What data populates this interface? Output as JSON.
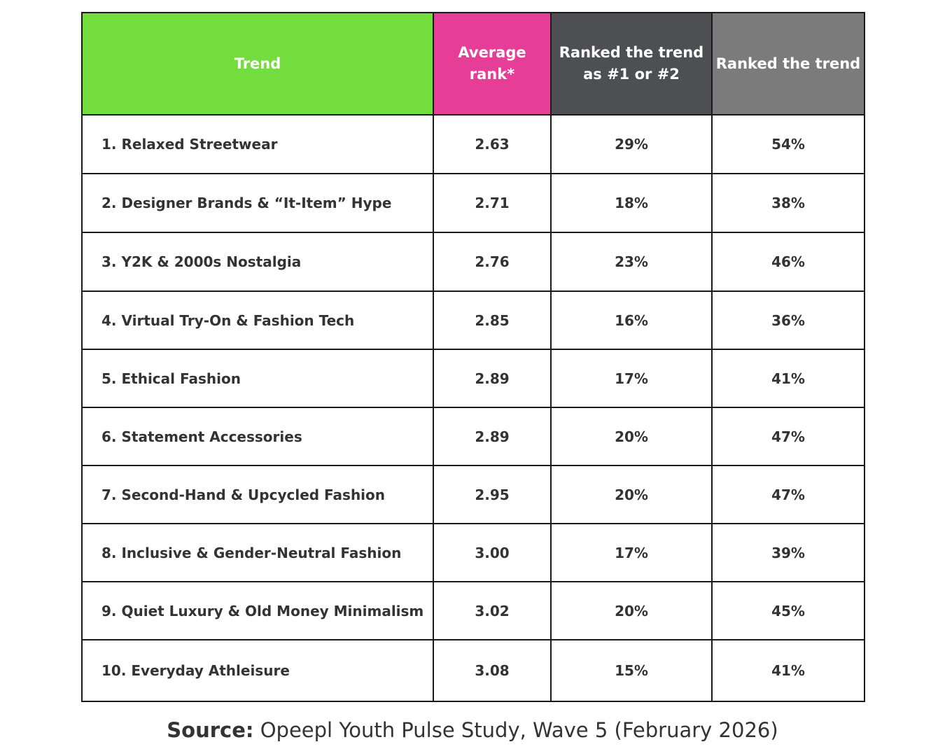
{
  "chart_data": {
    "type": "table",
    "columns": [
      {
        "label": "Trend",
        "color": "#73dd3d"
      },
      {
        "label": "Average rank*",
        "color": "#e63d96"
      },
      {
        "label": "Ranked the trend as #1 or #2",
        "color": "#4e4f52"
      },
      {
        "label": "Ranked the trend",
        "color": "#7b7b7b"
      }
    ],
    "rows": [
      {
        "trend": "1. Relaxed Streetwear",
        "avg_rank": "2.63",
        "top2": "29%",
        "ranked": "54%"
      },
      {
        "trend": "2. Designer Brands & “It-Item” Hype",
        "avg_rank": "2.71",
        "top2": "18%",
        "ranked": "38%"
      },
      {
        "trend": "3. Y2K & 2000s Nostalgia",
        "avg_rank": "2.76",
        "top2": "23%",
        "ranked": "46%"
      },
      {
        "trend": "4. Virtual Try-On & Fashion Tech",
        "avg_rank": "2.85",
        "top2": "16%",
        "ranked": "36%"
      },
      {
        "trend": "5. Ethical Fashion",
        "avg_rank": "2.89",
        "top2": "17%",
        "ranked": "41%"
      },
      {
        "trend": "6. Statement Accessories",
        "avg_rank": "2.89",
        "top2": "20%",
        "ranked": "47%"
      },
      {
        "trend": "7. Second-Hand & Upcycled Fashion",
        "avg_rank": "2.95",
        "top2": "20%",
        "ranked": "47%"
      },
      {
        "trend": "8. Inclusive & Gender-Neutral Fashion",
        "avg_rank": "3.00",
        "top2": "17%",
        "ranked": "39%"
      },
      {
        "trend": "9. Quiet Luxury & Old Money Minimalism",
        "avg_rank": "3.02",
        "top2": "20%",
        "ranked": "45%"
      },
      {
        "trend": "10. Everyday Athleisure",
        "avg_rank": "3.08",
        "top2": "15%",
        "ranked": "41%"
      }
    ]
  },
  "source": {
    "label": "Source:",
    "text": "Opeepl Youth Pulse Study, Wave 5 (February 2026)"
  }
}
